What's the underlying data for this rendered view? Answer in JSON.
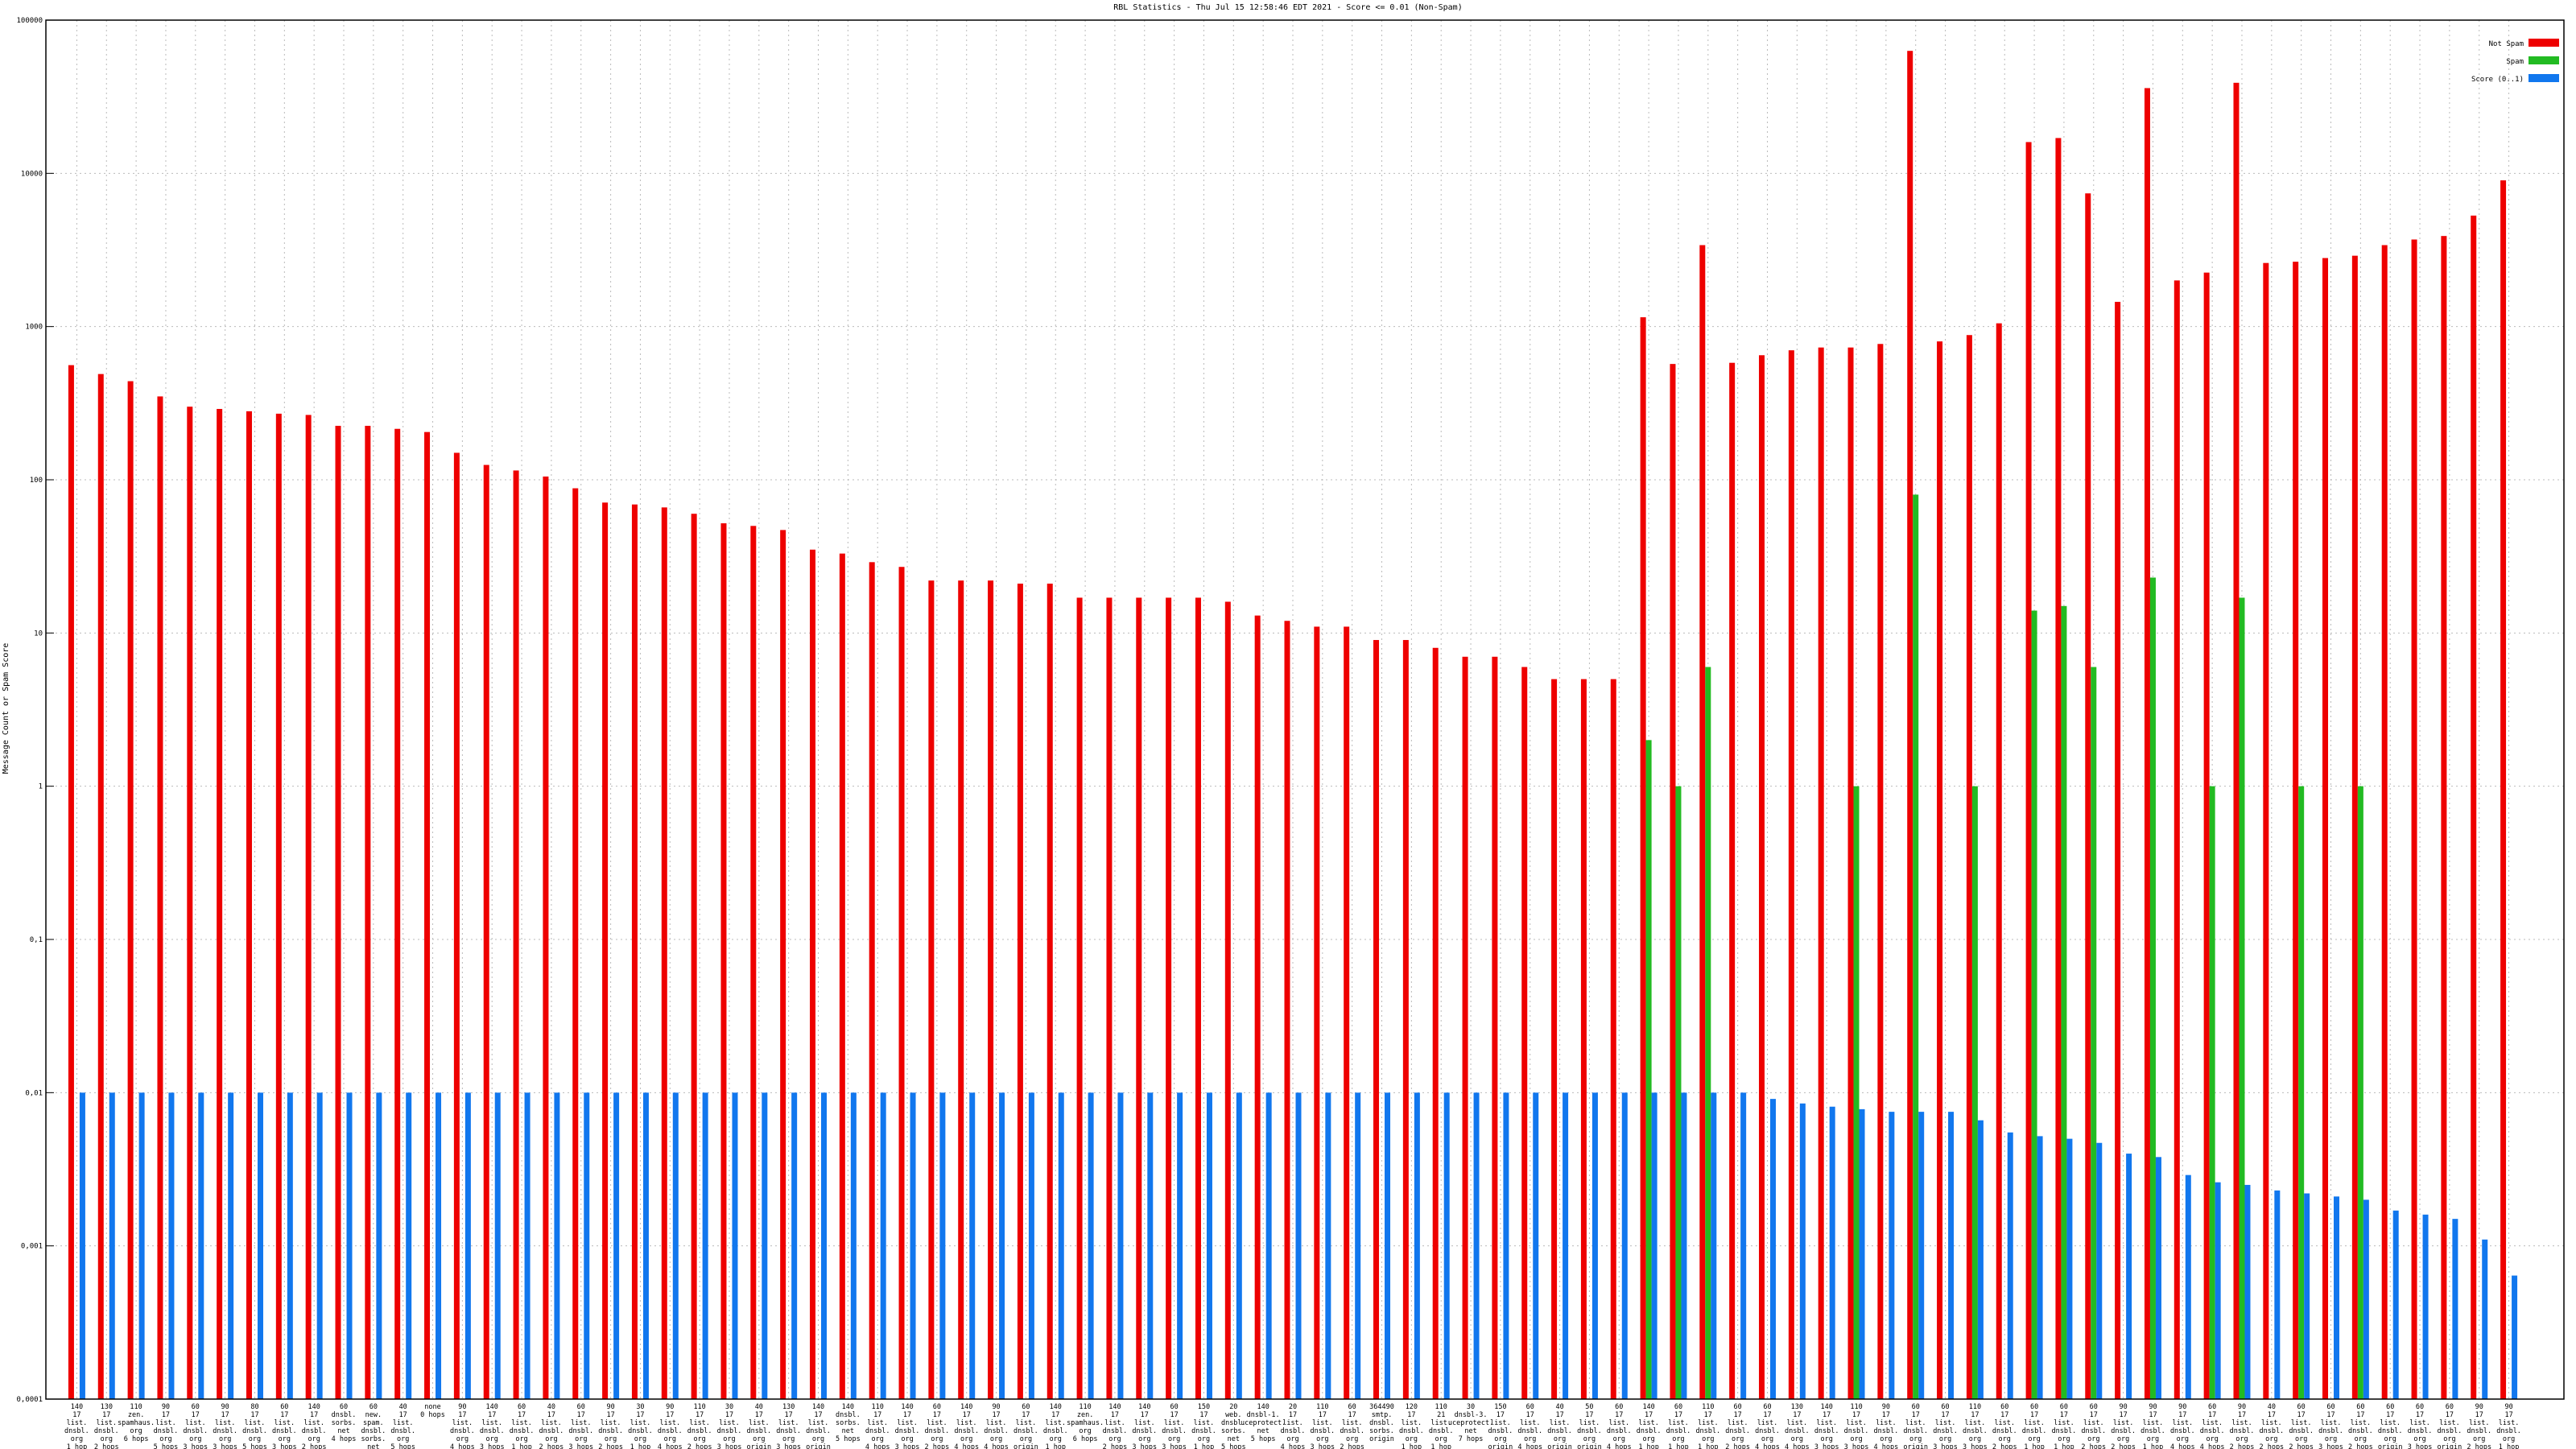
{
  "chart_data": {
    "type": "bar",
    "title": "RBL Statistics - Thu Jul 15 12:58:46 EDT 2021 - Score <= 0.01 (Non-Spam)",
    "y_label": "Message Count or Spam Score",
    "log_scale": true,
    "grid": true,
    "legend": "top-right",
    "ylim": [
      0.0001,
      100000
    ],
    "yticks": [
      {
        "value": 0.0001,
        "label": "0,0001"
      },
      {
        "value": 0.001,
        "label": "0,001"
      },
      {
        "value": 0.01,
        "label": "0,01"
      },
      {
        "value": 0.1,
        "label": "0,1"
      },
      1,
      10,
      100,
      1000,
      10000,
      100000
    ],
    "categories": [
      "140\n17\nlist.\ndnsbl.\norg\n1 hop",
      "130\n17\nlist.\ndnsbl.\norg\n2 hops",
      "110\nzen.\nspamhaus.\norg\n6 hops",
      "90\n17\nlist.\ndnsbl.\norg\n5 hops",
      "60\n17\nlist.\ndnsbl.\norg\n3 hops",
      "90\n17\nlist.\ndnsbl.\norg\n3 hops",
      "80\n17\nlist.\ndnsbl.\norg\n5 hops",
      "60\n17\nlist.\ndnsbl.\norg\n3 hops",
      "140\n17\nlist.\ndnsbl.\norg\n2 hops",
      "60\ndnsbl.\nsorbs.\nnet\n4 hops",
      "60\nnew.\nspam.\ndnsbl.\nsorbs.\nnet\n4 hops",
      "40\n17\nlist.\ndnsbl.\norg\n5 hops",
      "none\n0 hops",
      "90\n17\nlist.\ndnsbl.\norg\n4 hops",
      "140\n17\nlist.\ndnsbl.\norg\n3 hops",
      "60\n17\nlist.\ndnsbl.\norg\n1 hop",
      "40\n17\nlist.\ndnsbl.\norg\n2 hops",
      "60\n17\nlist.\ndnsbl.\norg\n3 hops",
      "90\n17\nlist.\ndnsbl.\norg\n2 hops",
      "30\n17\nlist.\ndnsbl.\norg\n1 hop",
      "90\n17\nlist.\ndnsbl.\norg\n4 hops",
      "110\n17\nlist.\ndnsbl.\norg\n2 hops",
      "30\n17\nlist.\ndnsbl.\norg\n3 hops",
      "40\n17\nlist.\ndnsbl.\norg\norigin",
      "130\n17\nlist.\ndnsbl.\norg\n3 hops",
      "140\n17\nlist.\ndnsbl.\norg\norigin",
      "140\ndnsbl.\nsorbs.\nnet\n5 hops",
      "110\n17\nlist.\ndnsbl.\norg\n4 hops",
      "140\n17\nlist.\ndnsbl.\norg\n3 hops",
      "60\n17\nlist.\ndnsbl.\norg\n2 hops",
      "140\n17\nlist.\ndnsbl.\norg\n4 hops",
      "90\n17\nlist.\ndnsbl.\norg\n4 hops",
      "60\n17\nlist.\ndnsbl.\norg\norigin",
      "140\n17\nlist.\ndnsbl.\norg\n1 hop",
      "110\nzen.\nspamhaus.\norg\n6 hops",
      "140\n17\nlist.\ndnsbl.\norg\n2 hops",
      "140\n17\nlist.\ndnsbl.\norg\n3 hops",
      "60\n17\nlist.\ndnsbl.\norg\n3 hops",
      "150\n17\nlist.\ndnsbl.\norg\n1 hop",
      "20\nweb.\ndnsbl.\nsorbs.\nnet\n5 hops",
      "140\ndnsbl-1.\nuceprotect.\nnet\n5 hops",
      "20\n17\nlist.\ndnsbl.\norg\n4 hops",
      "110\n17\nlist.\ndnsbl.\norg\n3 hops",
      "60\n17\nlist.\ndnsbl.\norg\n2 hops",
      "364490\nsmtp.\ndnsbl.\nsorbs.\norigin",
      "120\n17\nlist.\ndnsbl.\norg\n1 hop",
      "110\n21\nlist.\ndnsbl.\norg\n1 hop",
      "30\ndnsbl-3.\nuceprotect.\nnet\n7 hops",
      "150\n17\nlist.\ndnsbl.\norg\norigin",
      "60\n17\nlist.\ndnsbl.\norg\n4 hops",
      "40\n17\nlist.\ndnsbl.\norg\norigin",
      "50\n17\nlist.\ndnsbl.\norg\norigin",
      "60\n17\nlist.\ndnsbl.\norg\n4 hops",
      "140\n17\nlist.\ndnsbl.\norg\n1 hop",
      "60\n17\nlist.\ndnsbl.\norg\n1 hop",
      "110\n17\nlist.\ndnsbl.\norg\n1 hop",
      "60\n17\nlist.\ndnsbl.\norg\n2 hops",
      "60\n17\nlist.\ndnsbl.\norg\n4 hops",
      "130\n17\nlist.\ndnsbl.\norg\n4 hops",
      "140\n17\nlist.\ndnsbl.\norg\n3 hops",
      "110\n17\nlist.\ndnsbl.\norg\n3 hops",
      "90\n17\nlist.\ndnsbl.\norg\n4 hops",
      "60\n17\nlist.\ndnsbl.\norg\norigin",
      "60\n17\nlist.\ndnsbl.\norg\n3 hops",
      "110\n17\nlist.\ndnsbl.\norg\n3 hops",
      "60\n17\nlist.\ndnsbl.\norg\n2 hops",
      "60\n17\nlist.\ndnsbl.\norg\n1 hop",
      "60\n17\nlist.\ndnsbl.\norg\n1 hop",
      "60\n17\nlist.\ndnsbl.\norg\n2 hops",
      "90\n17\nlist.\ndnsbl.\norg\n2 hops",
      "90\n17\nlist.\ndnsbl.\norg\n1 hop",
      "90\n17\nlist.\ndnsbl.\norg\n4 hops",
      "60\n17\nlist.\ndnsbl.\norg\n4 hops",
      "90\n17\nlist.\ndnsbl.\norg\n2 hops",
      "40\n17\nlist.\ndnsbl.\norg\n2 hops",
      "60\n17\nlist.\ndnsbl.\norg\n2 hops",
      "60\n17\nlist.\ndnsbl.\norg\n3 hops",
      "60\n17\nlist.\ndnsbl.\norg\n2 hops",
      "60\n17\nlist.\ndnsbl.\norg\norigin",
      "60\n17\nlist.\ndnsbl.\norg\n3 hops",
      "60\n17\nlist.\ndnsbl.\norg\norigin",
      "90\n17\nlist.\ndnsbl.\norg\n2 hops",
      "90\n17\nlist.\ndnsbl.\norg\n1 hop"
    ],
    "series": [
      {
        "name": "Not Spam",
        "color": "#ee0000",
        "values": [
          560,
          490,
          440,
          350,
          300,
          290,
          280,
          270,
          265,
          225,
          225,
          215,
          205,
          150,
          125,
          115,
          105,
          88,
          71,
          69,
          66,
          60,
          52,
          50,
          47,
          35,
          33,
          29,
          27,
          22,
          22,
          22,
          21,
          21,
          17,
          17,
          17,
          17,
          17,
          16,
          13,
          12,
          11,
          11,
          9,
          9,
          8,
          7,
          7,
          6,
          5,
          5,
          5,
          1150,
          570,
          3400,
          580,
          650,
          700,
          730,
          730,
          770,
          63000,
          800,
          880,
          1050,
          16000,
          17000,
          7400,
          1450,
          36000,
          2000,
          2250,
          39000,
          2600,
          2650,
          2800,
          2900,
          3400,
          3700,
          3900,
          5300,
          9000
        ]
      },
      {
        "name": "Spam",
        "color": "#22bb22",
        "values": [
          0,
          0,
          0,
          0,
          0,
          0,
          0,
          0,
          0,
          0,
          0,
          0,
          0,
          0,
          0,
          0,
          0,
          0,
          0,
          0,
          0,
          0,
          0,
          0,
          0,
          0,
          0,
          0,
          0,
          0,
          0,
          0,
          0,
          0,
          0,
          0,
          0,
          0,
          0,
          0,
          0,
          0,
          0,
          0,
          0,
          0,
          0,
          0,
          0,
          0,
          0,
          0,
          0,
          2,
          1,
          6,
          0,
          0,
          0,
          0,
          1,
          0,
          80,
          0,
          1,
          0,
          14,
          15,
          6,
          0,
          23,
          0,
          1,
          17,
          0,
          1,
          0,
          1,
          0,
          0,
          0,
          0,
          0
        ]
      },
      {
        "name": "Score (0..1)",
        "color": "#1177ee",
        "values": [
          0.01,
          0.01,
          0.01,
          0.01,
          0.01,
          0.01,
          0.01,
          0.01,
          0.01,
          0.01,
          0.01,
          0.01,
          0.01,
          0.01,
          0.01,
          0.01,
          0.01,
          0.01,
          0.01,
          0.01,
          0.01,
          0.01,
          0.01,
          0.01,
          0.01,
          0.01,
          0.01,
          0.01,
          0.01,
          0.01,
          0.01,
          0.01,
          0.01,
          0.01,
          0.01,
          0.01,
          0.01,
          0.01,
          0.01,
          0.01,
          0.01,
          0.01,
          0.01,
          0.01,
          0.01,
          0.01,
          0.01,
          0.01,
          0.01,
          0.01,
          0.01,
          0.01,
          0.01,
          0.01,
          0.01,
          0.01,
          0.01,
          0.0091,
          0.0085,
          0.0081,
          0.0078,
          0.0075,
          0.0075,
          0.0075,
          0.0066,
          0.0055,
          0.0052,
          0.005,
          0.0047,
          0.004,
          0.0038,
          0.0029,
          0.0026,
          0.0025,
          0.0023,
          0.0022,
          0.0021,
          0.002,
          0.0017,
          0.0016,
          0.0015,
          0.0011,
          0.00064
        ]
      }
    ]
  }
}
